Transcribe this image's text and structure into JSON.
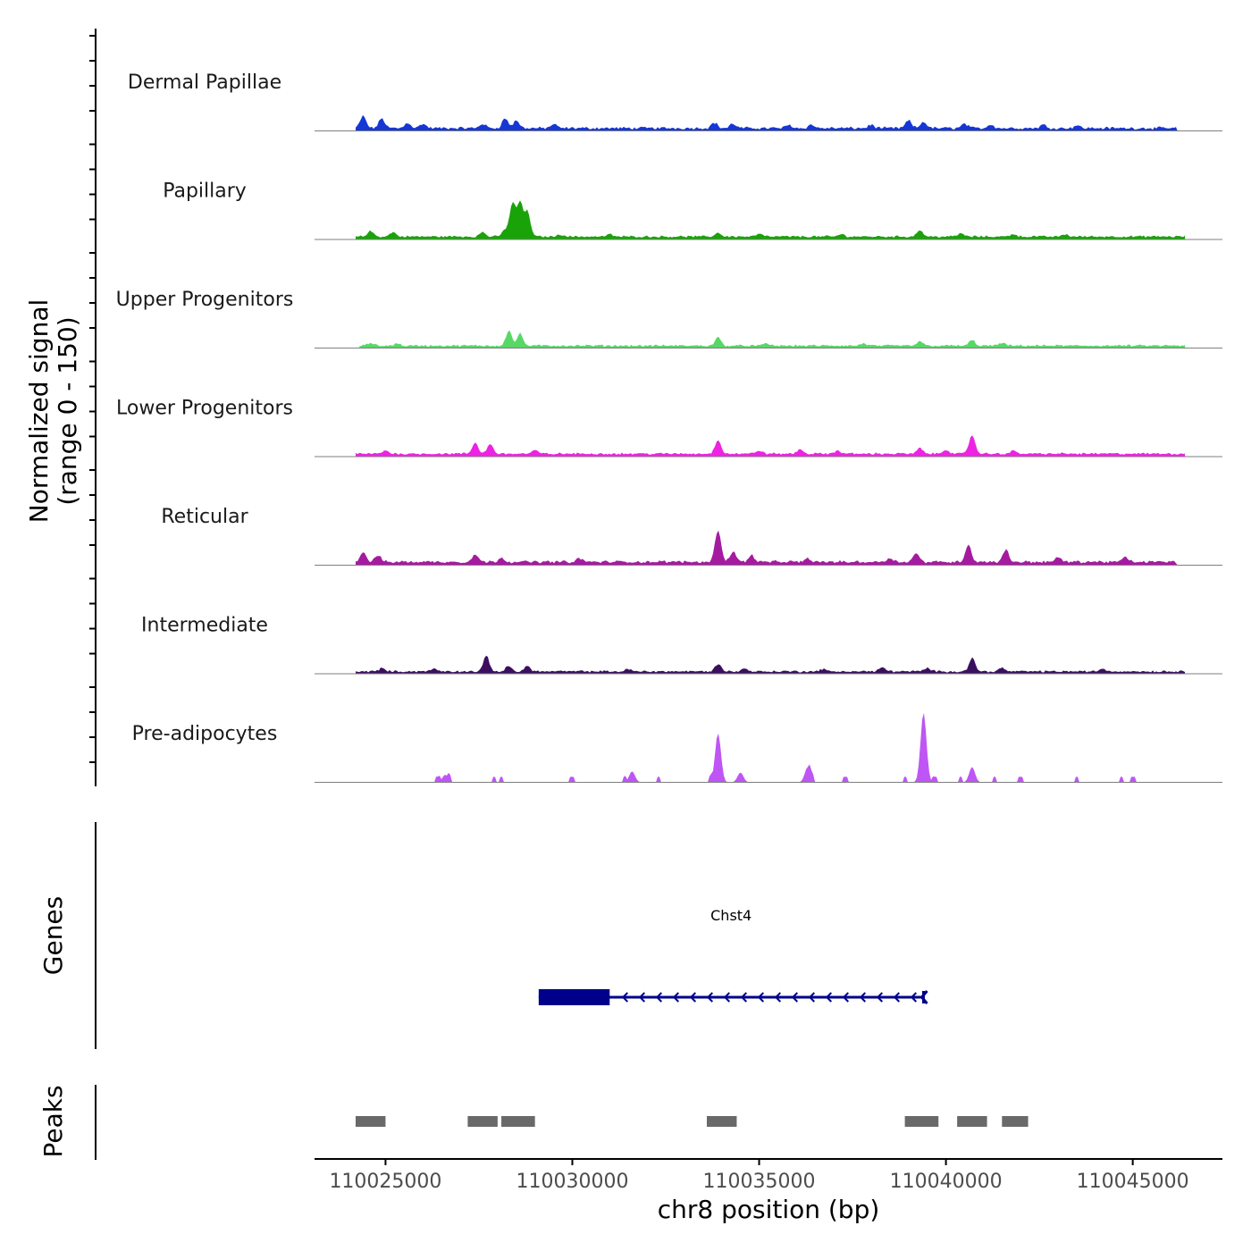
{
  "chart_data": {
    "type": "area",
    "title": "",
    "chromosome": "chr8",
    "xlabel": "chr8 position (bp)",
    "ylabel": "Normalized signal",
    "ylabel_range": "(range 0 - 150)",
    "xlim": [
      110023100,
      110047400
    ],
    "ylim": [
      0,
      150
    ],
    "x_ticks": [
      110025000,
      110030000,
      110035000,
      110040000,
      110045000
    ],
    "x_tick_labels": [
      "110025000",
      "110030000",
      "110035000",
      "110040000",
      "110045000"
    ],
    "tracks": [
      {
        "name": "Dermal Papillae",
        "color": "#1537d6",
        "start": 110024200,
        "end": 110046200,
        "baseline": 2,
        "noise": 4,
        "peaks": [
          [
            110024400,
            22
          ],
          [
            110024900,
            18
          ],
          [
            110025600,
            10
          ],
          [
            110026000,
            8
          ],
          [
            110027600,
            8
          ],
          [
            110028200,
            18
          ],
          [
            110028500,
            14
          ],
          [
            110029500,
            7
          ],
          [
            110033800,
            10
          ],
          [
            110034300,
            8
          ],
          [
            110035800,
            6
          ],
          [
            110036400,
            6
          ],
          [
            110038000,
            6
          ],
          [
            110039000,
            14
          ],
          [
            110039400,
            12
          ],
          [
            110040500,
            8
          ],
          [
            110041200,
            7
          ],
          [
            110042600,
            6
          ],
          [
            110043500,
            5
          ]
        ]
      },
      {
        "name": "Papillary",
        "color": "#1aa309",
        "start": 110024200,
        "end": 110046400,
        "baseline": 3,
        "noise": 3,
        "peaks": [
          [
            110024600,
            10
          ],
          [
            110025200,
            8
          ],
          [
            110027600,
            8
          ],
          [
            110028200,
            12
          ],
          [
            110028400,
            60
          ],
          [
            110028600,
            62
          ],
          [
            110028800,
            45
          ],
          [
            110029700,
            4
          ],
          [
            110031000,
            4
          ],
          [
            110033900,
            7
          ],
          [
            110035000,
            5
          ],
          [
            110037200,
            4
          ],
          [
            110039300,
            12
          ],
          [
            110040400,
            6
          ],
          [
            110041800,
            5
          ],
          [
            110043200,
            4
          ]
        ]
      },
      {
        "name": "Upper Progenitors",
        "color": "#57d866",
        "start": 110024300,
        "end": 110046400,
        "baseline": 2,
        "noise": 3,
        "peaks": [
          [
            110024600,
            5
          ],
          [
            110025300,
            4
          ],
          [
            110028300,
            28
          ],
          [
            110028600,
            22
          ],
          [
            110033900,
            15
          ],
          [
            110035200,
            4
          ],
          [
            110037800,
            4
          ],
          [
            110039300,
            8
          ],
          [
            110040700,
            10
          ],
          [
            110041500,
            5
          ]
        ]
      },
      {
        "name": "Lower Progenitors",
        "color": "#ee22e2",
        "start": 110024200,
        "end": 110046400,
        "baseline": 3,
        "noise": 3,
        "peaks": [
          [
            110025000,
            6
          ],
          [
            110027400,
            20
          ],
          [
            110027800,
            18
          ],
          [
            110029000,
            6
          ],
          [
            110033900,
            26
          ],
          [
            110035000,
            6
          ],
          [
            110036100,
            8
          ],
          [
            110037100,
            6
          ],
          [
            110039300,
            10
          ],
          [
            110040000,
            8
          ],
          [
            110040700,
            35
          ],
          [
            110041800,
            5
          ]
        ]
      },
      {
        "name": "Reticular",
        "color": "#a51ba0",
        "start": 110024200,
        "end": 110046200,
        "baseline": 3,
        "noise": 4,
        "peaks": [
          [
            110024400,
            18
          ],
          [
            110024800,
            12
          ],
          [
            110027400,
            14
          ],
          [
            110028100,
            8
          ],
          [
            110030200,
            6
          ],
          [
            110033900,
            60
          ],
          [
            110034300,
            20
          ],
          [
            110034800,
            12
          ],
          [
            110036300,
            6
          ],
          [
            110038500,
            8
          ],
          [
            110039200,
            16
          ],
          [
            110040600,
            32
          ],
          [
            110041600,
            22
          ],
          [
            110043000,
            8
          ],
          [
            110044800,
            8
          ]
        ]
      },
      {
        "name": "Intermediate",
        "color": "#3b0f5e",
        "start": 110024200,
        "end": 110046400,
        "baseline": 2,
        "noise": 3,
        "peaks": [
          [
            110024900,
            6
          ],
          [
            110026300,
            5
          ],
          [
            110027700,
            28
          ],
          [
            110028300,
            10
          ],
          [
            110028800,
            10
          ],
          [
            110031500,
            4
          ],
          [
            110033900,
            14
          ],
          [
            110034600,
            5
          ],
          [
            110036700,
            4
          ],
          [
            110038300,
            8
          ],
          [
            110039500,
            6
          ],
          [
            110040700,
            25
          ],
          [
            110041500,
            6
          ],
          [
            110044200,
            5
          ]
        ]
      },
      {
        "name": "Pre-adipocytes",
        "color": "#bf55f4",
        "start": 110024200,
        "end": 110046200,
        "baseline": 0,
        "noise": 0,
        "sparse": [
          110026400,
          110026700,
          110027900,
          110028100,
          110030000,
          110031400,
          110032300,
          110033700,
          110036400,
          110037300,
          110038900,
          110039700,
          110040400,
          110041300,
          110042000,
          110043500,
          110044700,
          110045000
        ],
        "peaks": [
          [
            110033900,
            90
          ],
          [
            110039400,
            128
          ],
          [
            110036300,
            28
          ],
          [
            110040700,
            28
          ],
          [
            110034500,
            18
          ],
          [
            110031600,
            20
          ],
          [
            110026600,
            14
          ]
        ]
      }
    ],
    "gene": {
      "name": "Chst4",
      "strand": "-",
      "color": "#00008b",
      "start": 110029100,
      "end": 110039400,
      "exon_start": 110029100,
      "exon_end": 110031000
    },
    "peak_track_label": "Peaks",
    "gene_track_label": "Genes",
    "peak_color": "#696969",
    "peak_regions": [
      [
        110024200,
        110025000
      ],
      [
        110027200,
        110028000
      ],
      [
        110028100,
        110029000
      ],
      [
        110033600,
        110034400
      ],
      [
        110038900,
        110039800
      ],
      [
        110040300,
        110041100
      ],
      [
        110041500,
        110042200
      ]
    ]
  }
}
